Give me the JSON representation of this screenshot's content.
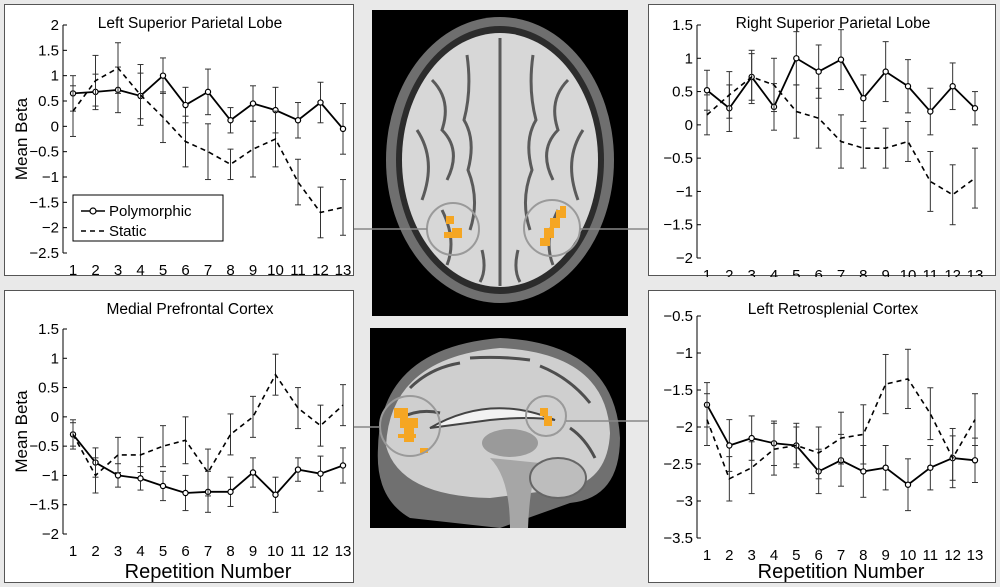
{
  "brain_images": {
    "axial": "axial-brain-slice-image",
    "sagittal": "sagittal-brain-slice-image",
    "highlight_color": "#f5a623"
  },
  "chart_data": [
    {
      "type": "line",
      "title": "Left Superior Parietal Lobe",
      "ylabel": "Mean Beta",
      "xlabel": "",
      "x": [
        1,
        2,
        3,
        4,
        5,
        6,
        7,
        8,
        9,
        10,
        11,
        12,
        13
      ],
      "ylim": [
        -2.5,
        2
      ],
      "yticks": [
        2,
        1.5,
        1,
        0.5,
        0,
        -0.5,
        -1,
        -1.5,
        -2,
        -2.5
      ],
      "ytick_labels": [
        "2",
        "1.5",
        "1",
        "0.5",
        "0",
        "−0.5",
        "−1",
        "−1.5",
        "−2",
        "−2.5"
      ],
      "legend": {
        "placement": "bottom-left",
        "entries": [
          "Polymorphic",
          "Static"
        ]
      },
      "series": [
        {
          "name": "Polymorphic",
          "style": "solid-circle",
          "values": [
            0.65,
            0.68,
            0.72,
            0.6,
            1.0,
            0.42,
            0.68,
            0.12,
            0.45,
            0.32,
            0.12,
            0.47,
            -0.05
          ],
          "errors": [
            0.35,
            0.35,
            0.45,
            0.45,
            0.35,
            0.35,
            0.45,
            0.25,
            0.35,
            0.45,
            0.35,
            0.4,
            0.5
          ]
        },
        {
          "name": "Static",
          "style": "dashed",
          "values": [
            0.3,
            0.9,
            1.15,
            0.62,
            0.18,
            -0.3,
            -0.5,
            -0.75,
            -0.45,
            -0.25,
            -1.1,
            -1.7,
            -1.6
          ],
          "errors": [
            0.5,
            0.5,
            0.5,
            0.6,
            0.5,
            0.5,
            0.55,
            0.3,
            0.55,
            0.55,
            0.45,
            0.5,
            0.55
          ]
        }
      ]
    },
    {
      "type": "line",
      "title": "Right Superior Parietal Lobe",
      "ylabel": "",
      "xlabel": "",
      "x": [
        1,
        2,
        3,
        4,
        5,
        6,
        7,
        8,
        9,
        10,
        11,
        12,
        13
      ],
      "ylim": [
        -2,
        1.5
      ],
      "yticks": [
        1.5,
        1,
        0.5,
        0,
        -0.5,
        -1,
        -1.5,
        -2
      ],
      "ytick_labels": [
        "1.5",
        "1",
        "0.5",
        "0",
        "−0.5",
        "−1",
        "−1.5",
        "−2"
      ],
      "series": [
        {
          "name": "Polymorphic",
          "style": "solid-circle",
          "values": [
            0.52,
            0.25,
            0.72,
            0.27,
            1.0,
            0.8,
            0.98,
            0.4,
            0.8,
            0.58,
            0.2,
            0.58,
            0.25
          ],
          "errors": [
            0.3,
            0.35,
            0.4,
            0.35,
            0.4,
            0.4,
            0.45,
            0.35,
            0.45,
            0.4,
            0.35,
            0.35,
            0.25
          ]
        },
        {
          "name": "Static",
          "style": "dashed",
          "values": [
            0.15,
            0.45,
            0.72,
            0.6,
            0.2,
            0.1,
            -0.25,
            -0.35,
            -0.35,
            -0.25,
            -0.85,
            -1.05,
            -0.8
          ],
          "errors": [
            0.3,
            0.35,
            0.35,
            0.4,
            0.4,
            0.45,
            0.4,
            0.3,
            0.3,
            0.3,
            0.45,
            0.45,
            0.45
          ]
        }
      ]
    },
    {
      "type": "line",
      "title": "Medial Prefrontal Cortex",
      "ylabel": "Mean Beta",
      "xlabel": "Repetition Number",
      "x": [
        1,
        2,
        3,
        4,
        5,
        6,
        7,
        8,
        9,
        10,
        11,
        12,
        13
      ],
      "ylim": [
        -2,
        1.5
      ],
      "yticks": [
        1.5,
        1,
        0.5,
        0,
        -0.5,
        -1,
        -1.5,
        -2
      ],
      "ytick_labels": [
        "1.5",
        "1",
        "0.5",
        "0",
        "−0.5",
        "−1",
        "−1.5",
        "−2"
      ],
      "series": [
        {
          "name": "Polymorphic",
          "style": "solid-circle",
          "values": [
            -0.3,
            -0.78,
            -1.0,
            -1.05,
            -1.18,
            -1.3,
            -1.28,
            -1.28,
            -0.95,
            -1.33,
            -0.9,
            -0.97,
            -0.83
          ],
          "errors": [
            0.2,
            0.25,
            0.2,
            0.2,
            0.25,
            0.3,
            0.35,
            0.25,
            0.25,
            0.3,
            0.2,
            0.3,
            0.3
          ]
        },
        {
          "name": "Static",
          "style": "dashed",
          "values": [
            -0.3,
            -1.0,
            -0.65,
            -0.65,
            -0.5,
            -0.4,
            -0.95,
            -0.3,
            0.0,
            0.72,
            0.15,
            -0.15,
            0.2
          ],
          "errors": [
            0.25,
            0.3,
            0.3,
            0.3,
            0.35,
            0.4,
            0.4,
            0.35,
            0.35,
            0.35,
            0.35,
            0.35,
            0.35
          ]
        }
      ]
    },
    {
      "type": "line",
      "title": "Left Retrosplenial Cortex",
      "ylabel": "",
      "xlabel": "Repetition Number",
      "x": [
        1,
        2,
        3,
        4,
        5,
        6,
        7,
        8,
        9,
        10,
        11,
        12,
        13
      ],
      "ylim": [
        -3.5,
        -0.5
      ],
      "yticks": [
        -0.5,
        -1,
        -1.5,
        -2,
        -2.5,
        -3,
        -3.5
      ],
      "ytick_labels": [
        "−0.5",
        "−1",
        "−1.5",
        "−2",
        "−2.5",
        "−3",
        "−3.5"
      ],
      "series": [
        {
          "name": "Polymorphic",
          "style": "solid-circle",
          "values": [
            -1.7,
            -2.25,
            -2.15,
            -2.22,
            -2.25,
            -2.6,
            -2.45,
            -2.6,
            -2.55,
            -2.78,
            -2.55,
            -2.42,
            -2.45
          ],
          "errors": [
            0.3,
            0.35,
            0.3,
            0.3,
            0.25,
            0.3,
            0.35,
            0.35,
            0.3,
            0.35,
            0.3,
            0.3,
            0.3
          ]
        },
        {
          "name": "Static",
          "style": "dashed",
          "values": [
            -1.9,
            -2.7,
            -2.55,
            -2.3,
            -2.25,
            -2.35,
            -2.15,
            -2.1,
            -1.42,
            -1.35,
            -1.82,
            -2.42,
            -1.9
          ],
          "errors": [
            0.35,
            0.3,
            0.35,
            0.35,
            0.3,
            0.35,
            0.35,
            0.4,
            0.4,
            0.4,
            0.35,
            0.4,
            0.35
          ]
        }
      ]
    }
  ]
}
